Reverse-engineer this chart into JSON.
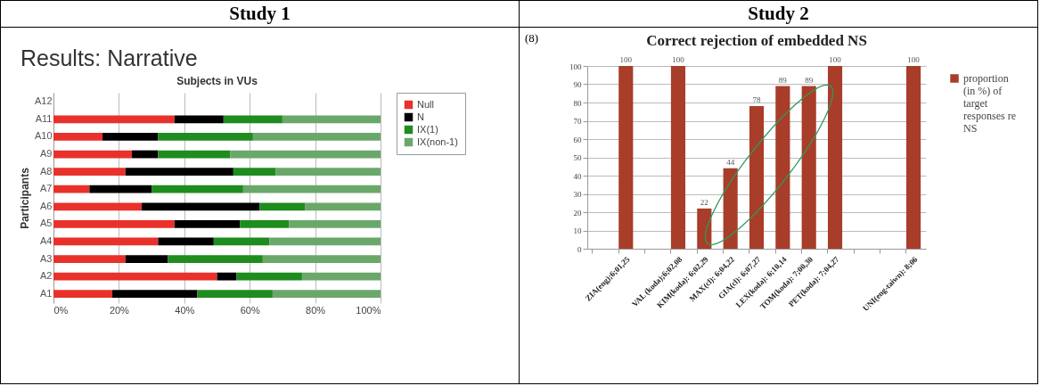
{
  "chart_data": [
    {
      "type": "bar",
      "orientation": "horizontal",
      "stacked": true,
      "title": "Results: Narrative",
      "subtitle": "Subjects in VUs",
      "ylabel": "Participants",
      "annotations": [
        "Study 1"
      ],
      "categories": [
        "A12",
        "A11",
        "A10",
        "A9",
        "A8",
        "A7",
        "A6",
        "A5",
        "A4",
        "A3",
        "A2",
        "A1"
      ],
      "series": [
        {
          "name": "Null",
          "color": "#e8312a",
          "values": [
            null,
            37,
            15,
            24,
            22,
            11,
            27,
            37,
            32,
            22,
            50,
            18
          ]
        },
        {
          "name": "N",
          "color": "#000000",
          "values": [
            null,
            15,
            17,
            8,
            33,
            19,
            36,
            20,
            17,
            13,
            6,
            26
          ]
        },
        {
          "name": "IX(1)",
          "color": "#1e8c1e",
          "values": [
            null,
            18,
            29,
            22,
            13,
            28,
            14,
            15,
            17,
            29,
            20,
            23
          ]
        },
        {
          "name": "IX(non-1)",
          "color": "#6aa86a",
          "values": [
            null,
            30,
            39,
            46,
            32,
            42,
            23,
            28,
            34,
            36,
            24,
            33
          ]
        }
      ],
      "xlim": [
        0,
        100
      ],
      "xticks": [
        {
          "value": 0,
          "label": "0%"
        },
        {
          "value": 20,
          "label": "20%"
        },
        {
          "value": 40,
          "label": "40%"
        },
        {
          "value": 60,
          "label": "60%"
        },
        {
          "value": 80,
          "label": "80%"
        },
        {
          "value": 100,
          "label": "100%"
        }
      ],
      "grid": "x",
      "legend": "right"
    },
    {
      "type": "bar",
      "title": "Correct rejection of embedded NS",
      "annotations": [
        "Study 2",
        "(8)"
      ],
      "categories": [
        null,
        "ZIA(eng);6;01,25",
        null,
        "VAL (koda);6;02,08",
        "KIM(koda): 6;02,29",
        "MAX(cl): 6;04,22",
        "GIA(cl): 6;07,27",
        "LEX(koda): 6;10,14",
        "TOM(koda): 7;00,30",
        "PET(koda): 7;04,27",
        null,
        null,
        "UNI(eng-taiwn): 8;06"
      ],
      "series": [
        {
          "name": "proportion (in %) of target responses re NS",
          "color": "#a83d2a",
          "values": [
            null,
            100,
            null,
            100,
            22,
            44,
            78,
            89,
            89,
            100,
            null,
            null,
            100
          ]
        }
      ],
      "ylim": [
        0,
        100
      ],
      "yticks": [
        0,
        10,
        20,
        30,
        40,
        50,
        60,
        70,
        80,
        90,
        100
      ],
      "grid": "y",
      "legend": "right",
      "data_labels": true
    }
  ]
}
